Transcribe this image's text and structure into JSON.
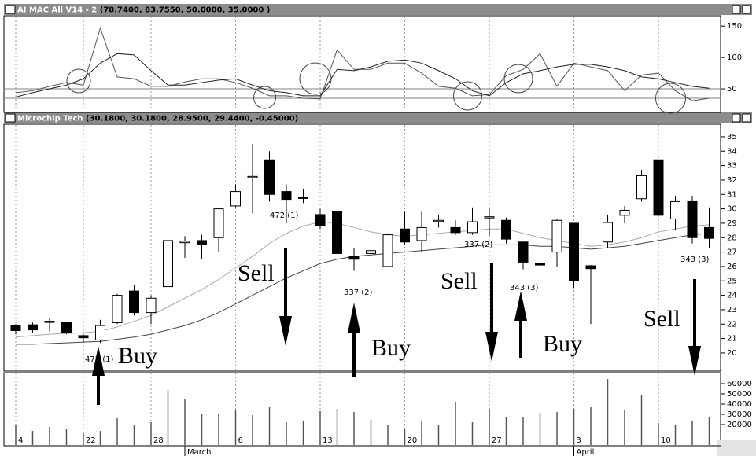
{
  "chart_data": [
    {
      "type": "line",
      "title": "AI MAC All V14 - 2",
      "title_values": "(78.7400, 83.7550, 50.0000, 35.0000 )",
      "ylim": [
        15,
        164
      ],
      "yticks": [
        50,
        100,
        150
      ],
      "levels": [
        50,
        35
      ],
      "level_color": "#808080",
      "series": [
        {
          "color": "#555555",
          "values": [
            44,
            47,
            54,
            60,
            56,
            147,
            69,
            66,
            54,
            54,
            61,
            66,
            66,
            60,
            51,
            39,
            39,
            35,
            34,
            112,
            81,
            81,
            91,
            91,
            75,
            54,
            51,
            39,
            41,
            71,
            81,
            106,
            54,
            91,
            85,
            79,
            47,
            72,
            75,
            47,
            31,
            35
          ]
        },
        {
          "color": "#222222",
          "values": [
            37,
            44,
            50,
            56,
            66,
            91,
            106,
            104,
            79,
            56,
            56,
            60,
            64,
            66,
            56,
            47,
            44,
            39,
            39,
            81,
            79,
            85,
            94,
            96,
            91,
            79,
            66,
            47,
            39,
            60,
            74,
            79,
            85,
            89,
            89,
            85,
            79,
            69,
            66,
            60,
            54,
            51
          ]
        }
      ]
    },
    {
      "type": "candlestick",
      "title": "Microchip Tech",
      "title_values": "(30.1800, 30.1800, 28.9500, 29.4400, -0.45000)",
      "ylim": [
        18.85,
        35.76
      ],
      "yticks": [
        20,
        21,
        22,
        23,
        24,
        25,
        26,
        27,
        28,
        29,
        30,
        31,
        32,
        33,
        34,
        35
      ],
      "open": [
        21.9,
        21.95,
        22.2,
        22.1,
        21.2,
        20.9,
        22.1,
        24.3,
        22.8,
        24.6,
        27.65,
        27.8,
        28.0,
        30.2,
        32.2,
        33.4,
        31.2,
        30.8,
        29.6,
        29.8,
        26.7,
        26.9,
        26.0,
        28.6,
        27.8,
        29.15,
        28.7,
        28.35,
        29.4,
        29.2,
        27.7,
        26.2,
        27.0,
        29.0,
        26.05,
        27.7,
        29.55,
        30.7,
        33.4,
        29.3,
        30.5,
        28.7
      ],
      "high": [
        22.0,
        22.1,
        22.4,
        22.1,
        21.3,
        22.3,
        24.1,
        24.7,
        24.0,
        28.3,
        28.1,
        28.2,
        30.0,
        31.7,
        34.5,
        34.0,
        31.7,
        31.4,
        30.0,
        31.4,
        27.3,
        28.3,
        28.3,
        29.8,
        29.8,
        29.6,
        29.2,
        30.1,
        30.1,
        29.4,
        27.7,
        26.3,
        29.3,
        29.0,
        26.1,
        29.6,
        30.2,
        32.7,
        33.4,
        30.9,
        30.9,
        30.1
      ],
      "low": [
        21.3,
        21.4,
        21.5,
        21.3,
        20.7,
        20.7,
        22.0,
        22.6,
        22.0,
        24.6,
        26.6,
        26.5,
        27.0,
        30.1,
        29.7,
        30.5,
        29.0,
        30.4,
        28.6,
        26.7,
        25.7,
        23.8,
        26.0,
        27.5,
        27.0,
        28.7,
        28.2,
        28.2,
        28.1,
        27.6,
        25.8,
        25.7,
        26.0,
        24.5,
        22.0,
        27.3,
        29.0,
        30.5,
        29.5,
        28.5,
        27.6,
        27.3
      ],
      "close": [
        21.55,
        21.6,
        22.15,
        21.4,
        21.05,
        21.9,
        24.0,
        22.8,
        23.8,
        27.8,
        27.75,
        27.55,
        30.0,
        31.2,
        32.25,
        31.0,
        30.6,
        30.75,
        28.85,
        26.9,
        26.5,
        27.1,
        28.2,
        27.7,
        28.7,
        29.2,
        28.35,
        29.1,
        29.45,
        27.9,
        26.3,
        26.1,
        29.2,
        25.0,
        25.85,
        29.05,
        29.9,
        32.3,
        29.55,
        30.5,
        28.0,
        27.95
      ],
      "up_color": "#ffffff",
      "down_color": "#000000",
      "series": [
        {
          "color": "#444444",
          "values": [
            20.6,
            20.6,
            20.65,
            20.7,
            20.75,
            20.8,
            20.95,
            21.1,
            21.3,
            21.6,
            21.9,
            22.3,
            22.8,
            23.4,
            24.0,
            24.6,
            25.2,
            25.7,
            26.2,
            26.5,
            26.7,
            26.8,
            26.9,
            27.0,
            27.1,
            27.2,
            27.3,
            27.4,
            27.5,
            27.5,
            27.5,
            27.4,
            27.4,
            27.3,
            27.2,
            27.3,
            27.4,
            27.6,
            27.8,
            28.0,
            28.2,
            28.3
          ]
        },
        {
          "color": "#aaaaaa",
          "values": [
            21.1,
            21.2,
            21.3,
            21.35,
            21.4,
            21.5,
            21.8,
            22.2,
            22.6,
            23.2,
            23.8,
            24.4,
            25.1,
            25.9,
            26.7,
            27.6,
            28.3,
            28.8,
            29.1,
            29.0,
            28.7,
            28.4,
            28.2,
            28.1,
            28.2,
            28.3,
            28.4,
            28.5,
            28.6,
            28.6,
            28.3,
            28.0,
            27.8,
            27.6,
            27.4,
            27.5,
            27.7,
            28.0,
            28.4,
            28.6,
            28.8,
            28.9
          ]
        }
      ],
      "annotations": [
        "472 (1)",
        "Buy",
        "472 (1)",
        "Sell",
        "337 (2)",
        "Buy",
        "337 (2)",
        "Sell",
        "343 (3)",
        "Buy",
        "343 (3)",
        "Sell"
      ]
    },
    {
      "type": "bar",
      "color": "#555555",
      "ylim": [
        0,
        70000
      ],
      "yticks": [
        20000,
        30000,
        40000,
        50000,
        60000
      ],
      "values": [
        20000,
        13800,
        17700,
        15400,
        11500,
        13800,
        26200,
        19200,
        22300,
        53800,
        44600,
        30000,
        30000,
        33800,
        29200,
        36900,
        22300,
        23100,
        33100,
        35400,
        32300,
        24600,
        20000,
        15400,
        23100,
        20000,
        42300,
        22300,
        35400,
        27700,
        27700,
        31500,
        32300,
        35400,
        36900,
        64600,
        34600,
        49200,
        21500,
        20000,
        23100,
        27700
      ],
      "categories": [
        "4",
        null,
        null,
        null,
        "22",
        null,
        null,
        null,
        "28",
        null,
        null,
        null,
        null,
        "6",
        null,
        null,
        null,
        null,
        "13",
        null,
        null,
        null,
        null,
        "20",
        null,
        null,
        null,
        null,
        "27",
        null,
        null,
        null,
        null,
        "3",
        null,
        null,
        null,
        null,
        "10",
        null,
        null,
        null
      ],
      "month_categories": [
        null,
        null,
        null,
        null,
        null,
        null,
        null,
        null,
        null,
        null,
        "March",
        null,
        null,
        null,
        null,
        null,
        null,
        null,
        null,
        null,
        null,
        null,
        null,
        null,
        null,
        null,
        null,
        null,
        null,
        null,
        null,
        null,
        null,
        "April",
        null,
        null,
        null,
        null,
        null,
        null,
        null,
        null
      ]
    }
  ]
}
